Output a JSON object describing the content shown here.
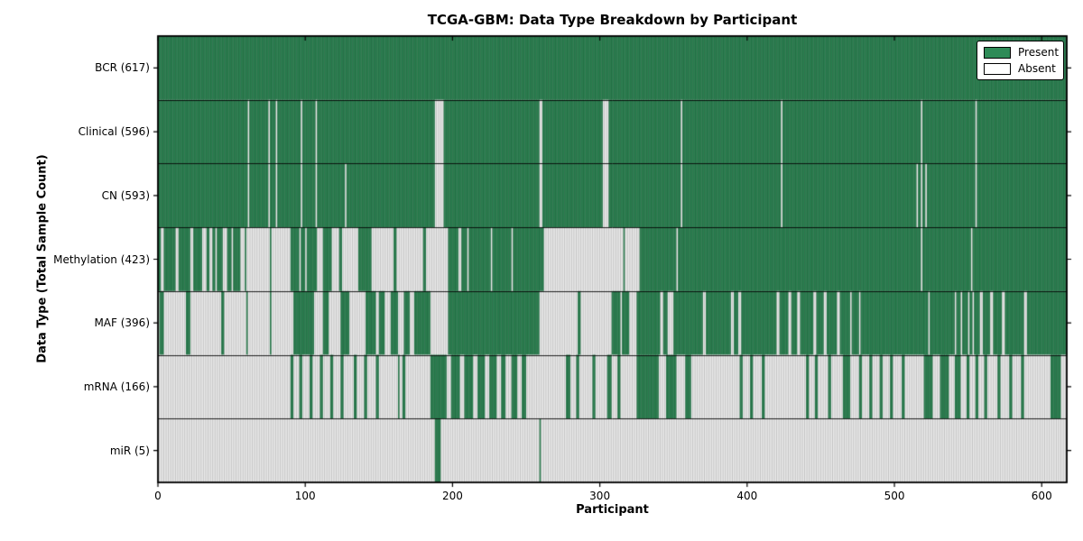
{
  "chart_data": {
    "type": "heatmap",
    "title": "TCGA-GBM: Data Type Breakdown by Participant",
    "xlabel": "Participant",
    "ylabel": "Data Type (Total Sample Count)",
    "xlim": [
      0,
      617
    ],
    "n_participants": 617,
    "x_ticks": [
      0,
      100,
      200,
      300,
      400,
      500,
      600
    ],
    "legend": {
      "present_label": "Present",
      "absent_label": "Absent",
      "position": "upper right"
    },
    "colors": {
      "present": "#2e8b57",
      "absent": "#ffffff",
      "cell_edge": "rgba(0,0,0,0.48)",
      "row_separator": "rgba(0,0,0,0.85)",
      "spine": "#000000"
    },
    "rows": [
      {
        "name": "BCR",
        "label": "BCR (617)",
        "total": 617,
        "base": "present",
        "absent_ranges": [],
        "present_ranges": [],
        "mixed_ranges": []
      },
      {
        "name": "Clinical",
        "label": "Clinical (596)",
        "total": 596,
        "base": "present",
        "absent_ranges": [
          [
            61,
            62
          ],
          [
            75,
            76
          ],
          [
            80,
            81
          ],
          [
            97,
            98
          ],
          [
            107,
            108
          ],
          [
            188,
            194
          ],
          [
            259,
            261
          ],
          [
            302,
            306
          ],
          [
            355,
            356
          ],
          [
            423,
            424
          ],
          [
            518,
            519
          ],
          [
            555,
            556
          ]
        ],
        "present_ranges": [],
        "mixed_ranges": []
      },
      {
        "name": "CN",
        "label": "CN (593)",
        "total": 593,
        "base": "present",
        "absent_ranges": [
          [
            61,
            62
          ],
          [
            75,
            76
          ],
          [
            80,
            81
          ],
          [
            97,
            98
          ],
          [
            107,
            108
          ],
          [
            127,
            128
          ],
          [
            188,
            194
          ],
          [
            259,
            261
          ],
          [
            302,
            306
          ],
          [
            355,
            356
          ],
          [
            423,
            424
          ],
          [
            515,
            516
          ],
          [
            518,
            519
          ],
          [
            521,
            522
          ],
          [
            555,
            556
          ]
        ],
        "present_ranges": [],
        "mixed_ranges": []
      },
      {
        "name": "Methylation",
        "label": "Methylation (423)",
        "total": 423,
        "base": "present",
        "absent_ranges": [
          [
            2,
            4
          ],
          [
            12,
            14
          ],
          [
            22,
            24
          ],
          [
            30,
            33
          ],
          [
            35,
            37
          ],
          [
            60,
            76
          ],
          [
            77,
            90
          ],
          [
            96,
            97
          ],
          [
            100,
            101
          ],
          [
            108,
            112
          ],
          [
            118,
            120
          ],
          [
            125,
            136
          ],
          [
            145,
            160
          ],
          [
            164,
            180
          ],
          [
            183,
            197
          ],
          [
            204,
            206
          ],
          [
            210,
            211
          ],
          [
            226,
            227
          ],
          [
            240,
            241
          ],
          [
            262,
            316
          ],
          [
            317,
            327
          ],
          [
            352,
            353
          ],
          [
            518,
            519
          ],
          [
            552,
            553
          ]
        ],
        "present_ranges": [],
        "mixed_ranges": [
          [
            39,
            60,
            0.65
          ],
          [
            120,
            125,
            0.5
          ],
          [
            160,
            164,
            0.4
          ],
          [
            180,
            183,
            0.5
          ]
        ]
      },
      {
        "name": "MAF",
        "label": "MAF (396)",
        "total": 396,
        "base": "present",
        "absent_ranges": [
          [
            0,
            1
          ],
          [
            4,
            19
          ],
          [
            22,
            43
          ],
          [
            45,
            60
          ],
          [
            61,
            76
          ],
          [
            77,
            92
          ],
          [
            106,
            112
          ],
          [
            116,
            124
          ],
          [
            130,
            141
          ],
          [
            148,
            150
          ],
          [
            154,
            158
          ],
          [
            163,
            167
          ],
          [
            171,
            174
          ],
          [
            185,
            197
          ],
          [
            259,
            285
          ],
          [
            287,
            308
          ],
          [
            314,
            315
          ],
          [
            320,
            325
          ],
          [
            341,
            343
          ],
          [
            346,
            350
          ],
          [
            370,
            372
          ],
          [
            389,
            391
          ],
          [
            394,
            396
          ],
          [
            420,
            422
          ],
          [
            428,
            430
          ],
          [
            434,
            436
          ],
          [
            445,
            447
          ],
          [
            452,
            454
          ],
          [
            461,
            463
          ],
          [
            470,
            471
          ],
          [
            476,
            477
          ],
          [
            523,
            524
          ],
          [
            541,
            542
          ],
          [
            545,
            546
          ],
          [
            550,
            551
          ],
          [
            553,
            554
          ],
          [
            558,
            560
          ],
          [
            565,
            567
          ],
          [
            573,
            575
          ],
          [
            588,
            590
          ]
        ],
        "present_ranges": [],
        "mixed_ranges": []
      },
      {
        "name": "mRNA",
        "label": "mRNA (166)",
        "total": 166,
        "base": "absent",
        "absent_ranges": [],
        "present_ranges": [
          [
            90,
            92
          ],
          [
            96,
            98
          ],
          [
            103,
            105
          ],
          [
            110,
            112
          ],
          [
            117,
            119
          ],
          [
            124,
            126
          ],
          [
            133,
            135
          ],
          [
            140,
            142
          ],
          [
            148,
            150
          ],
          [
            163,
            164
          ],
          [
            166,
            168
          ],
          [
            185,
            196
          ],
          [
            199,
            205
          ],
          [
            208,
            214
          ],
          [
            217,
            222
          ],
          [
            225,
            230
          ],
          [
            233,
            236
          ],
          [
            240,
            244
          ],
          [
            247,
            250
          ],
          [
            277,
            280
          ],
          [
            284,
            286
          ],
          [
            295,
            297
          ],
          [
            305,
            308
          ],
          [
            312,
            314
          ],
          [
            325,
            340
          ],
          [
            345,
            352
          ],
          [
            358,
            362
          ],
          [
            395,
            397
          ],
          [
            402,
            404
          ],
          [
            410,
            412
          ],
          [
            440,
            442
          ],
          [
            446,
            448
          ],
          [
            455,
            457
          ],
          [
            465,
            470
          ],
          [
            476,
            478
          ],
          [
            483,
            485
          ],
          [
            490,
            492
          ],
          [
            497,
            499
          ],
          [
            505,
            507
          ],
          [
            520,
            526
          ],
          [
            531,
            537
          ],
          [
            541,
            545
          ],
          [
            549,
            551
          ],
          [
            555,
            557
          ],
          [
            561,
            563
          ],
          [
            570,
            572
          ],
          [
            578,
            580
          ],
          [
            586,
            588
          ],
          [
            606,
            613
          ]
        ],
        "mixed_ranges": []
      },
      {
        "name": "miR",
        "label": "miR (5)",
        "total": 5,
        "base": "absent",
        "absent_ranges": [],
        "present_ranges": [
          [
            188,
            192
          ],
          [
            259,
            260
          ]
        ],
        "mixed_ranges": []
      }
    ]
  }
}
